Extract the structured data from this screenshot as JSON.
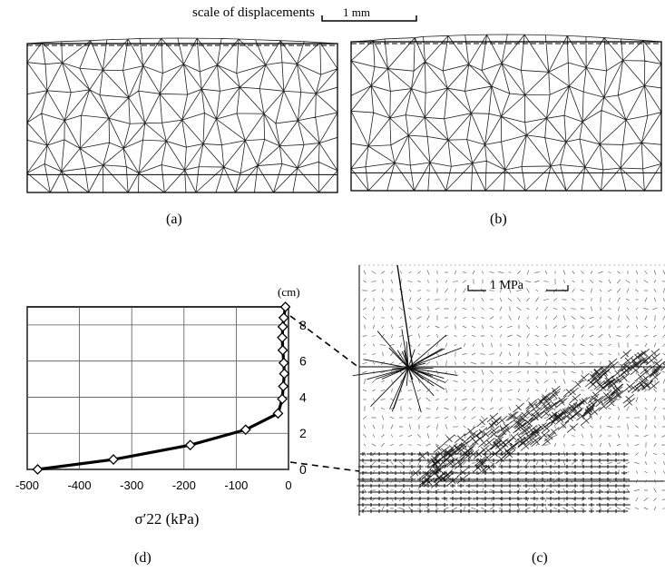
{
  "header": {
    "scale_label": "scale of displacements",
    "scale_length": "1 mm"
  },
  "captions": {
    "a": "(a)",
    "b": "(b)",
    "c": "(c)",
    "d": "(d)"
  },
  "stress_field": {
    "scale_label": "1 MPa"
  },
  "chart_data": {
    "type": "line",
    "title": "",
    "xlabel": "σ′22 (kPa)",
    "ylabel": "(cm)",
    "xlim": [
      -500,
      0
    ],
    "ylim": [
      0,
      9
    ],
    "xticks": [
      "-500",
      "-400",
      "-300",
      "-200",
      "-100",
      "0"
    ],
    "yticks": [
      "0",
      "2",
      "4",
      "6",
      "8"
    ],
    "grid": true,
    "series": [
      {
        "marker": "diamond",
        "x": [
          -480,
          -335,
          -188,
          -82,
          -20,
          -12,
          -10,
          -8,
          -9,
          -11,
          -12,
          -11,
          -9,
          -6
        ],
        "y": [
          0.0,
          0.55,
          1.35,
          2.2,
          3.1,
          3.9,
          4.6,
          5.3,
          5.9,
          6.6,
          7.3,
          7.9,
          8.4,
          9.0
        ]
      }
    ]
  }
}
